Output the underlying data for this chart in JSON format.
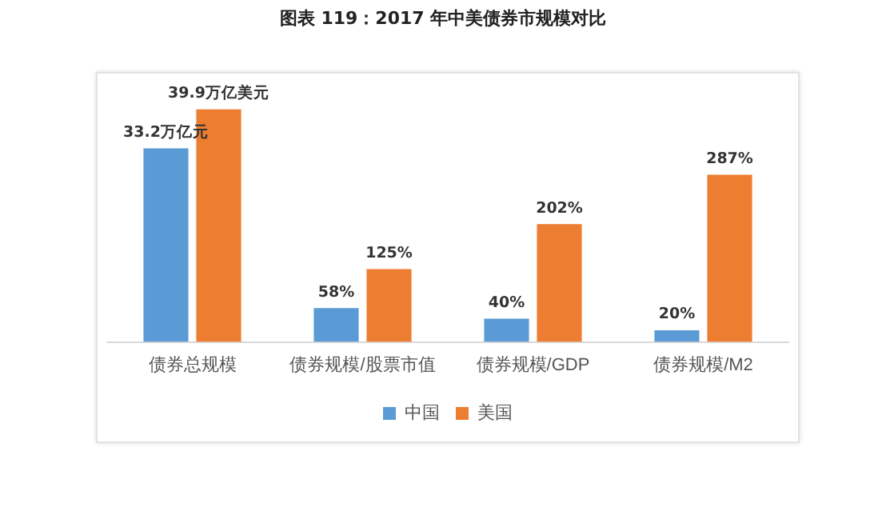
{
  "chart_data": {
    "type": "bar",
    "title": "图表 119：2017 年中美债券市规模对比",
    "categories": [
      "债券总规模",
      "债券规模/股票市值",
      "债券规模/GDP",
      "债券规模/M2"
    ],
    "series": [
      {
        "name": "中国",
        "color": "#5b9bd5",
        "values": [
          null,
          58,
          40,
          20
        ],
        "value_labels": [
          null,
          "58%",
          "40%",
          "20%"
        ]
      },
      {
        "name": "美国",
        "color": "#ed7d31",
        "values": [
          null,
          125,
          202,
          287
        ],
        "value_labels": [
          null,
          "125%",
          "202%",
          "287%"
        ]
      },
      {
        "color": "#5b9bd5",
        "axis": "y2",
        "values": [
          33.2,
          null,
          null,
          null
        ],
        "value_labels": [
          "33.2万亿元",
          null,
          null,
          null
        ]
      },
      {
        "color": "#ed7d31",
        "axis": "y2",
        "values": [
          39.9,
          null,
          null,
          null
        ],
        "value_labels": [
          "39.9万亿美元",
          null,
          null,
          null
        ]
      }
    ],
    "ylim": [
      0,
      400
    ],
    "y2lim": [
      0,
      40
    ],
    "tick_labels": "x",
    "legend": "bottom",
    "grid": false
  }
}
